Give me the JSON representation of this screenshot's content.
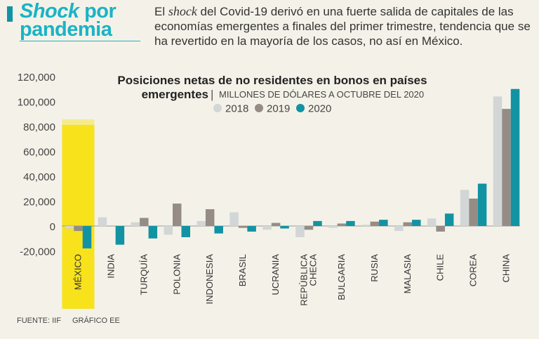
{
  "header": {
    "brand_line1": "Shock",
    "brand_line1_rest": " por",
    "brand_line2": "pandemia",
    "intro_pre": "El ",
    "intro_em": "shock",
    "intro_post": " del Covid-19 derivó en una fuerte salida de capitales de las economías emergentes a finales del primer trimestre, tendencia que se ha revertido en la mayoría de los casos, no así en México."
  },
  "footer": {
    "source": "FUENTE: IIF",
    "graphic": "GRÁFICO EE"
  },
  "colors": {
    "s2018": "#d2d6d6",
    "s2019": "#958c86",
    "s2020": "#1293a3",
    "highlight": "#f7e21c",
    "brand": "#1ab3c6"
  },
  "chart_data": {
    "type": "bar",
    "title_line1": "Posiciones netas de no residentes en bonos en países",
    "title_line2": "emergentes",
    "subtitle": "MILLONES DE DÓLARES A OCTUBRE DEL 2020",
    "separator": "|",
    "categories": [
      "MÉXICO",
      "INDIA",
      "TURQUÍA",
      "POLONIA",
      "INDONESIA",
      "BRASIL",
      "UCRANIA",
      "REPÚBLICA CHECA",
      "BULGARIA",
      "RUSIA",
      "MALASIA",
      "CHILE",
      "COREA",
      "CHINA"
    ],
    "category_lines": [
      [
        "MÉXICO"
      ],
      [
        "INDIA"
      ],
      [
        "TURQUÍA"
      ],
      [
        "POLONIA"
      ],
      [
        "INDONESIA"
      ],
      [
        "BRASIL"
      ],
      [
        "UCRANIA"
      ],
      [
        "REPÚBLICA",
        "CHECA"
      ],
      [
        "BULGARIA"
      ],
      [
        "RUSIA"
      ],
      [
        "MALASIA"
      ],
      [
        "CHILE"
      ],
      [
        "COREA"
      ],
      [
        "CHINA"
      ]
    ],
    "highlight_category": "MÉXICO",
    "series": [
      {
        "name": "2018",
        "values": [
          -2000,
          7000,
          3000,
          -7000,
          4000,
          11000,
          -3000,
          -9000,
          -1500,
          1000,
          -4000,
          6000,
          29000,
          104000
        ]
      },
      {
        "name": "2019",
        "values": [
          -4000,
          0,
          6500,
          18000,
          13500,
          -1500,
          2500,
          -3000,
          2000,
          3500,
          3000,
          -4500,
          22000,
          94000
        ]
      },
      {
        "name": "2020",
        "values": [
          -18000,
          -15000,
          -10000,
          -9000,
          -6000,
          -4500,
          -2000,
          4000,
          4000,
          5000,
          5000,
          10000,
          34000,
          110000
        ]
      }
    ],
    "ylim": [
      -20000,
      120000
    ],
    "yticks": [
      -20000,
      0,
      20000,
      40000,
      60000,
      80000,
      100000,
      120000
    ],
    "ytick_labels": [
      "-20,000",
      "0",
      "20,000",
      "40,000",
      "60,000",
      "80,000",
      "100,000",
      "120,000"
    ],
    "legend_position": "top-center",
    "grid": false
  }
}
